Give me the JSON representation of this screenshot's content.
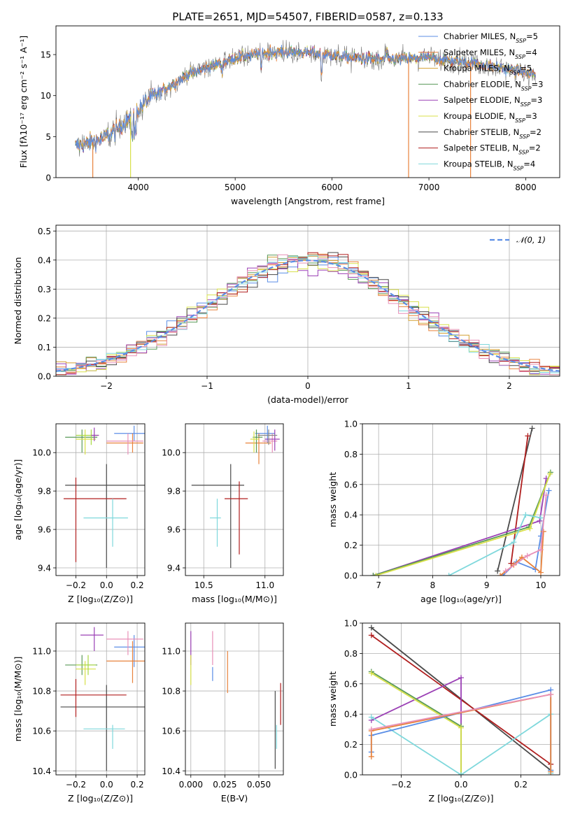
{
  "figure": {
    "title": "PLATE=2651, MJD=54507, FIBERID=0587, z=0.133"
  },
  "colors": {
    "Chabrier MILES": "#5b8ee6",
    "Salpeter MILES": "#e8823c",
    "Kroupa MILES": "#d4a032",
    "Chabrier ELODIE": "#5a9a58",
    "Salpeter ELODIE": "#9b40b5",
    "Kroupa ELODIE": "#d8e04a",
    "Chabrier STELIB": "#4a4a4a",
    "Salpeter STELIB": "#b01e1e",
    "Kroupa STELIB": "#7fd8dc",
    "pink": "#e890b8",
    "lime": "#a8d840",
    "gray": "#888888"
  },
  "chart_data": [
    {
      "id": "spectrum",
      "type": "line",
      "xlabel": "wavelength [Angstrom, rest frame]",
      "ylabel": "Flux [fλ10⁻¹⁷ erg cm⁻² s⁻¹ A⁻¹]",
      "xlim": [
        3150,
        8350
      ],
      "ylim": [
        0,
        18.5
      ],
      "xticks": [
        4000,
        5000,
        6000,
        7000,
        8000
      ],
      "yticks": [
        0,
        5,
        10,
        15
      ],
      "legend_position": "top-right",
      "continuum": {
        "x": [
          3350,
          3600,
          3800,
          3950,
          4100,
          4300,
          4500,
          4800,
          5000,
          5300,
          5600,
          5900,
          6200,
          6500,
          7000,
          7500,
          8100
        ],
        "y": [
          3.8,
          4.6,
          6.0,
          7.8,
          9.5,
          11.0,
          12.5,
          13.8,
          14.6,
          15.2,
          15.3,
          15.1,
          14.6,
          14.4,
          14.6,
          13.9,
          12.6
        ]
      },
      "series": [
        {
          "name": "Chabrier MILES, N$_{SSP}$=5",
          "label_main": "Chabrier MILES, N",
          "label_sub": "SSP",
          "label_rest": "=5"
        },
        {
          "name": "Salpeter MILES, N$_{SSP}$=4",
          "label_main": "Salpeter MILES, N",
          "label_sub": "SSP",
          "label_rest": "=4"
        },
        {
          "name": "Kroupa MILES, N$_{SSP}$=5",
          "label_main": "Kroupa MILES, N",
          "label_sub": "SSP",
          "label_rest": "=5"
        },
        {
          "name": "Chabrier ELODIE, N$_{SSP}$=3",
          "label_main": "Chabrier ELODIE, N",
          "label_sub": "SSP",
          "label_rest": "=3"
        },
        {
          "name": "Salpeter ELODIE, N$_{SSP}$=3",
          "label_main": "Salpeter ELODIE, N",
          "label_sub": "SSP",
          "label_rest": "=3"
        },
        {
          "name": "Kroupa ELODIE, N$_{SSP}$=3",
          "label_main": "Kroupa ELODIE, N",
          "label_sub": "SSP",
          "label_rest": "=3"
        },
        {
          "name": "Chabrier STELIB, N$_{SSP}$=2",
          "label_main": "Chabrier STELIB, N",
          "label_sub": "SSP",
          "label_rest": "=2"
        },
        {
          "name": "Salpeter STELIB, N$_{SSP}$=2",
          "label_main": "Salpeter STELIB, N",
          "label_sub": "SSP",
          "label_rest": "=2"
        },
        {
          "name": "Kroupa STELIB, N$_{SSP}$=4",
          "label_main": "Kroupa STELIB, N",
          "label_sub": "SSP",
          "label_rest": "=4"
        }
      ],
      "dropouts": [
        {
          "series": "Salpeter MILES",
          "x": 3530
        },
        {
          "series": "Kroupa ELODIE",
          "x": 3920
        },
        {
          "series": "Salpeter MILES",
          "x": 6790
        },
        {
          "series": "Salpeter MILES",
          "x": 7430
        }
      ]
    },
    {
      "id": "residual-histogram",
      "type": "bar",
      "xlabel": "(data-model)/error",
      "ylabel": "Normed distribution",
      "xlim": [
        -2.5,
        2.5
      ],
      "ylim": [
        0,
        0.52
      ],
      "xticks": [
        -2,
        -1,
        0,
        1,
        2
      ],
      "yticks": [
        0.0,
        0.1,
        0.2,
        0.3,
        0.4,
        0.5
      ],
      "grid": true,
      "legend_position": "top-right",
      "reference_curve": {
        "name": "𝒩(0, 1)",
        "style": "dashed",
        "color": "#5b8ee6"
      },
      "bin_width": 0.1,
      "series_colors": [
        "Chabrier MILES",
        "Salpeter MILES",
        "Kroupa MILES",
        "Chabrier ELODIE",
        "Salpeter ELODIE",
        "Kroupa ELODIE",
        "Chabrier STELIB",
        "Salpeter STELIB",
        "Kroupa STELIB",
        "pink"
      ]
    },
    {
      "id": "age-vs-Z",
      "type": "scatter",
      "xlabel": "Z [log₁₀(Z/Z⊙)]",
      "ylabel": "age  [log₁₀(age/yr)]",
      "xlim": [
        -0.33,
        0.25
      ],
      "ylim": [
        9.36,
        10.15
      ],
      "xticks": [
        -0.2,
        0.0,
        0.2
      ],
      "yticks": [
        9.4,
        9.6,
        9.8,
        10.0
      ],
      "grid": true,
      "points": [
        {
          "c": "Chabrier STELIB",
          "x": 0.0,
          "xl": -0.27,
          "xh": 0.26,
          "y": 9.83,
          "yl": 9.4,
          "yh": 9.94
        },
        {
          "c": "Salpeter STELIB",
          "x": -0.2,
          "xl": -0.28,
          "xh": 0.13,
          "y": 9.76,
          "yl": 9.43,
          "yh": 9.87
        },
        {
          "c": "Kroupa STELIB",
          "x": 0.04,
          "xl": -0.15,
          "xh": 0.14,
          "y": 9.66,
          "yl": 9.51,
          "yh": 9.76
        },
        {
          "c": "Chabrier MILES",
          "x": 0.18,
          "xl": 0.05,
          "xh": 0.3,
          "y": 10.1,
          "yl": 10.06,
          "yh": 10.14
        },
        {
          "c": "Salpeter MILES",
          "x": 0.17,
          "xl": 0.0,
          "xh": 0.24,
          "y": 10.05,
          "yl": 10.0,
          "yh": 10.1
        },
        {
          "c": "pink",
          "x": 0.14,
          "xl": 0.0,
          "xh": 0.24,
          "y": 10.06,
          "yl": 9.99,
          "yh": 10.1
        },
        {
          "c": "Chabrier ELODIE",
          "x": -0.16,
          "xl": -0.27,
          "xh": -0.06,
          "y": 10.08,
          "yl": 10.0,
          "yh": 10.12
        },
        {
          "c": "Kroupa ELODIE",
          "x": -0.14,
          "xl": -0.2,
          "xh": -0.07,
          "y": 10.07,
          "yl": 9.99,
          "yh": 10.12
        },
        {
          "c": "lime",
          "x": -0.1,
          "xl": -0.2,
          "xh": -0.05,
          "y": 10.09,
          "yl": 10.04,
          "yh": 10.12
        },
        {
          "c": "Salpeter ELODIE",
          "x": -0.08,
          "xl": -0.1,
          "xh": -0.05,
          "y": 10.09,
          "yl": 10.06,
          "yh": 10.13
        }
      ]
    },
    {
      "id": "age-vs-mass",
      "type": "scatter",
      "xlabel": "mass [log₁₀(M/M⊙)]",
      "ylabel": "",
      "xlim": [
        10.35,
        11.15
      ],
      "ylim": [
        9.36,
        10.15
      ],
      "xticks": [
        10.5,
        11.0
      ],
      "yticks": [
        9.4,
        9.6,
        9.8,
        10.0
      ],
      "grid": true,
      "points": [
        {
          "c": "Chabrier STELIB",
          "x": 10.72,
          "xl": 10.4,
          "xh": 10.83,
          "y": 9.83,
          "yl": 9.4,
          "yh": 9.94
        },
        {
          "c": "Salpeter STELIB",
          "x": 10.79,
          "xl": 10.67,
          "xh": 10.86,
          "y": 9.76,
          "yl": 9.47,
          "yh": 9.85
        },
        {
          "c": "Kroupa STELIB",
          "x": 10.61,
          "xl": 10.55,
          "xh": 10.64,
          "y": 9.66,
          "yl": 9.51,
          "yh": 9.76
        },
        {
          "c": "Chabrier MILES",
          "x": 11.02,
          "xl": 10.92,
          "xh": 11.08,
          "y": 10.1,
          "yl": 10.05,
          "yh": 10.14
        },
        {
          "c": "Salpeter MILES",
          "x": 10.95,
          "xl": 10.84,
          "xh": 11.05,
          "y": 10.05,
          "yl": 9.94,
          "yh": 10.1
        },
        {
          "c": "pink",
          "x": 11.06,
          "xl": 10.98,
          "xh": 11.1,
          "y": 10.06,
          "yl": 10.0,
          "yh": 10.1
        },
        {
          "c": "Chabrier ELODIE",
          "x": 10.93,
          "xl": 10.9,
          "xh": 10.98,
          "y": 10.08,
          "yl": 10.0,
          "yh": 10.12
        },
        {
          "c": "Kroupa ELODIE",
          "x": 10.91,
          "xl": 10.88,
          "xh": 10.95,
          "y": 10.07,
          "yl": 10.0,
          "yh": 10.11
        },
        {
          "c": "Salpeter ELODIE",
          "x": 11.08,
          "xl": 11.0,
          "xh": 11.12,
          "y": 10.07,
          "yl": 10.01,
          "yh": 10.12
        },
        {
          "c": "gray",
          "x": 11.03,
          "xl": 10.94,
          "xh": 11.1,
          "y": 10.09,
          "yl": 10.04,
          "yh": 10.12
        }
      ]
    },
    {
      "id": "weight-vs-age",
      "type": "line",
      "xlabel": "age  [log₁₀(age/yr)]",
      "ylabel": "mass weight",
      "xlim": [
        6.7,
        10.35
      ],
      "ylim": [
        0,
        1.0
      ],
      "xticks": [
        7,
        8,
        9,
        10
      ],
      "yticks": [
        0.0,
        0.2,
        0.4,
        0.6,
        0.8,
        1.0
      ],
      "grid": true,
      "series": [
        {
          "c": "Chabrier STELIB",
          "x": [
            9.2,
            9.84
          ],
          "y": [
            0.03,
            0.97
          ]
        },
        {
          "c": "Salpeter STELIB",
          "x": [
            9.45,
            9.76
          ],
          "y": [
            0.08,
            0.92
          ]
        },
        {
          "c": "Salpeter ELODIE",
          "x": [
            6.9,
            9.98,
            10.1
          ],
          "y": [
            0.0,
            0.36,
            0.64
          ]
        },
        {
          "c": "Chabrier ELODIE",
          "x": [
            6.9,
            9.78,
            10.18
          ],
          "y": [
            0.0,
            0.32,
            0.68
          ]
        },
        {
          "c": "Kroupa ELODIE",
          "x": [
            6.95,
            9.8,
            10.17
          ],
          "y": [
            0.0,
            0.31,
            0.67
          ]
        },
        {
          "c": "Kroupa STELIB",
          "x": [
            8.3,
            9.5,
            9.72,
            10.0
          ],
          "y": [
            0.0,
            0.22,
            0.4,
            0.38
          ]
        },
        {
          "c": "Chabrier MILES",
          "x": [
            9.3,
            9.55,
            9.9,
            10.0,
            10.15
          ],
          "y": [
            0.0,
            0.09,
            0.04,
            0.26,
            0.56
          ]
        },
        {
          "c": "Salpeter MILES",
          "x": [
            9.25,
            9.5,
            9.65,
            10.0,
            10.05
          ],
          "y": [
            0.0,
            0.07,
            0.12,
            0.02,
            0.29
          ]
        },
        {
          "c": "pink",
          "x": [
            9.35,
            9.75,
            10.0,
            10.1
          ],
          "y": [
            0.03,
            0.13,
            0.17,
            0.53
          ]
        }
      ]
    },
    {
      "id": "mass-vs-Z",
      "type": "scatter",
      "xlabel": "Z [log₁₀(Z/Z⊙)]",
      "ylabel": "mass [log₁₀(M/M⊙)]",
      "xlim": [
        -0.33,
        0.25
      ],
      "ylim": [
        10.38,
        11.14
      ],
      "xticks": [
        -0.2,
        0.0,
        0.2
      ],
      "yticks": [
        10.4,
        10.6,
        10.8,
        11.0
      ],
      "grid": true,
      "points": [
        {
          "c": "Chabrier STELIB",
          "x": 0.0,
          "xl": -0.3,
          "xh": 0.26,
          "y": 10.72,
          "yl": 10.4,
          "yh": 10.83
        },
        {
          "c": "Salpeter STELIB",
          "x": -0.2,
          "xl": -0.3,
          "xh": 0.13,
          "y": 10.78,
          "yl": 10.67,
          "yh": 10.86
        },
        {
          "c": "Kroupa STELIB",
          "x": 0.04,
          "xl": -0.15,
          "xh": 0.12,
          "y": 10.61,
          "yl": 10.51,
          "yh": 10.63
        },
        {
          "c": "Chabrier MILES",
          "x": 0.18,
          "xl": 0.05,
          "xh": 0.3,
          "y": 11.02,
          "yl": 10.92,
          "yh": 11.08
        },
        {
          "c": "Salpeter MILES",
          "x": 0.17,
          "xl": 0.0,
          "xh": 0.26,
          "y": 10.95,
          "yl": 10.84,
          "yh": 11.05
        },
        {
          "c": "pink",
          "x": 0.14,
          "xl": 0.0,
          "xh": 0.24,
          "y": 11.06,
          "yl": 10.98,
          "yh": 11.1
        },
        {
          "c": "Chabrier ELODIE",
          "x": -0.16,
          "xl": -0.27,
          "xh": -0.06,
          "y": 10.93,
          "yl": 10.88,
          "yh": 10.98
        },
        {
          "c": "Kroupa ELODIE",
          "x": -0.14,
          "xl": -0.2,
          "xh": -0.07,
          "y": 10.91,
          "yl": 10.83,
          "yh": 10.95
        },
        {
          "c": "lime",
          "x": -0.12,
          "xl": -0.2,
          "xh": -0.07,
          "y": 10.93,
          "yl": 10.88,
          "yh": 10.98
        },
        {
          "c": "Salpeter ELODIE",
          "x": -0.08,
          "xl": -0.17,
          "xh": -0.02,
          "y": 11.08,
          "yl": 11.0,
          "yh": 11.12
        }
      ]
    },
    {
      "id": "mass-vs-EBV",
      "type": "scatter",
      "xlabel": "E(B-V)",
      "ylabel": "",
      "xlim": [
        -0.004,
        0.068
      ],
      "ylim": [
        10.38,
        11.14
      ],
      "xticks": [
        0.0,
        0.025,
        0.05
      ],
      "xticklabels": [
        "0.000",
        "0.025",
        "0.050"
      ],
      "yticks": [
        10.4,
        10.6,
        10.8,
        11.0
      ],
      "grid": true,
      "points": [
        {
          "c": "Salpeter ELODIE",
          "x": 0.0,
          "y": 11.0,
          "yl": 10.93,
          "yh": 11.1
        },
        {
          "c": "Kroupa ELODIE",
          "x": 0.0,
          "y": 10.9,
          "yl": 10.83,
          "yh": 10.98
        },
        {
          "c": "pink",
          "x": 0.016,
          "y": 11.0,
          "yl": 10.93,
          "yh": 11.1
        },
        {
          "c": "Chabrier MILES",
          "x": 0.016,
          "y": 10.88,
          "yl": 10.85,
          "yh": 10.92
        },
        {
          "c": "Salpeter MILES",
          "x": 0.027,
          "y": 10.9,
          "yl": 10.79,
          "yh": 11.0
        },
        {
          "c": "Chabrier STELIB",
          "x": 0.062,
          "y": 10.72,
          "yl": 10.41,
          "yh": 10.8
        },
        {
          "c": "Kroupa STELIB",
          "x": 0.063,
          "y": 10.58,
          "yl": 10.51,
          "yh": 10.63
        },
        {
          "c": "Salpeter STELIB",
          "x": 0.066,
          "y": 10.78,
          "yl": 10.63,
          "yh": 10.84
        }
      ]
    },
    {
      "id": "weight-vs-Z",
      "type": "line",
      "xlabel": "Z [log₁₀(Z/Z⊙)]",
      "ylabel": "mass weight",
      "xlim": [
        -0.33,
        0.33
      ],
      "ylim": [
        0,
        1.0
      ],
      "xticks": [
        -0.2,
        0.0,
        0.2
      ],
      "yticks": [
        0.0,
        0.2,
        0.4,
        0.6,
        0.8,
        1.0
      ],
      "grid": true,
      "series": [
        {
          "c": "Chabrier STELIB",
          "x": [
            -0.3,
            0.3
          ],
          "y": [
            0.97,
            0.03
          ]
        },
        {
          "c": "Salpeter STELIB",
          "x": [
            -0.3,
            0.3
          ],
          "y": [
            0.92,
            0.07
          ]
        },
        {
          "c": "Salpeter ELODIE",
          "x": [
            -0.3,
            0.0,
            0.0
          ],
          "y": [
            0.36,
            0.64,
            0.0
          ]
        },
        {
          "c": "Chabrier ELODIE",
          "x": [
            -0.3,
            0.0,
            0.0
          ],
          "y": [
            0.68,
            0.32,
            0.0
          ]
        },
        {
          "c": "Kroupa ELODIE",
          "x": [
            -0.3,
            0.0,
            0.0
          ],
          "y": [
            0.67,
            0.31,
            0.0
          ]
        },
        {
          "c": "Kroupa STELIB",
          "x": [
            -0.3,
            0.0,
            0.3,
            0.3
          ],
          "y": [
            0.38,
            0.0,
            0.4,
            0.01
          ]
        },
        {
          "c": "Chabrier MILES",
          "x": [
            -0.3,
            -0.3,
            0.3,
            0.3
          ],
          "y": [
            0.15,
            0.26,
            0.56,
            0.03
          ]
        },
        {
          "c": "Salpeter MILES",
          "x": [
            -0.3,
            -0.3,
            0.3,
            0.3
          ],
          "y": [
            0.12,
            0.29,
            0.53,
            0.02
          ]
        },
        {
          "c": "pink",
          "x": [
            -0.3,
            0.3
          ],
          "y": [
            0.3,
            0.53
          ]
        }
      ]
    }
  ]
}
